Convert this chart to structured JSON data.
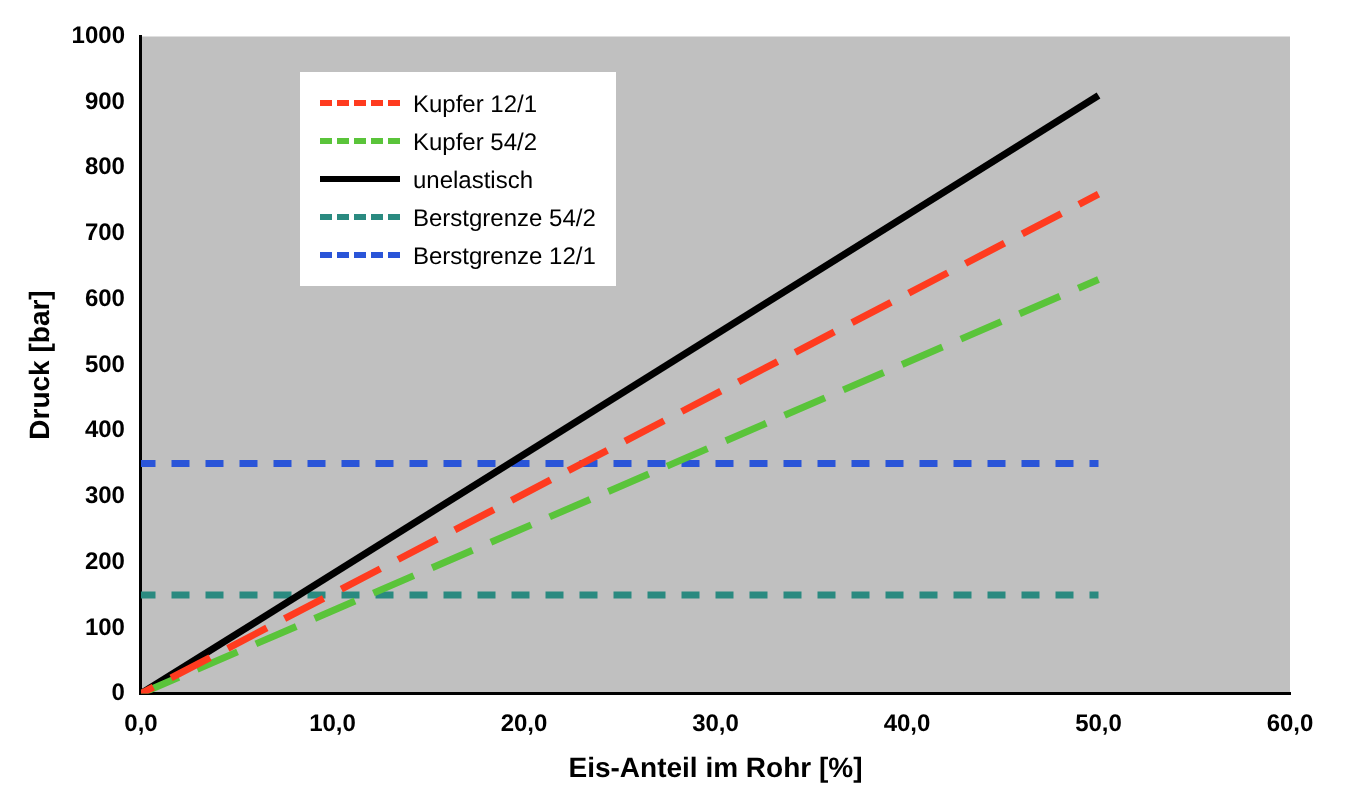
{
  "chart_data": {
    "type": "line",
    "xlabel": "Eis-Anteil im Rohr [%]",
    "ylabel": "Druck [bar]",
    "xlim": [
      0,
      60
    ],
    "xticks": [
      {
        "value": 0,
        "label": "0,0"
      },
      {
        "value": 10,
        "label": "10,0"
      },
      {
        "value": 20,
        "label": "20,0"
      },
      {
        "value": 30,
        "label": "30,0"
      },
      {
        "value": 40,
        "label": "40,0"
      },
      {
        "value": 50,
        "label": "50,0"
      },
      {
        "value": 60,
        "label": "60,0"
      }
    ],
    "ylim": [
      0,
      1000
    ],
    "yticks": [
      0,
      100,
      200,
      300,
      400,
      500,
      600,
      700,
      800,
      900,
      1000
    ],
    "grid": false,
    "legend": "top left",
    "marker": "none",
    "x": [
      0,
      50
    ],
    "series": [
      {
        "name": "Kupfer 12/1",
        "color": "#ff3b1f",
        "values": [
          0,
          760
        ],
        "line_style": "dashed"
      },
      {
        "name": "Kupfer 54/2",
        "color": "#5ac43a",
        "values": [
          0,
          630
        ],
        "line_style": "dashed"
      },
      {
        "name": "unelastisch",
        "color": "#000000",
        "values": [
          0,
          910
        ],
        "line_style": "solid"
      },
      {
        "name": "Berstgrenze 54/2",
        "color": "#2a8a80",
        "values": [
          150,
          150
        ],
        "line_style": "dotted"
      },
      {
        "name": "Berstgrenze 12/1",
        "color": "#2a55d8",
        "values": [
          350,
          350
        ],
        "line_style": "dotted"
      }
    ]
  }
}
